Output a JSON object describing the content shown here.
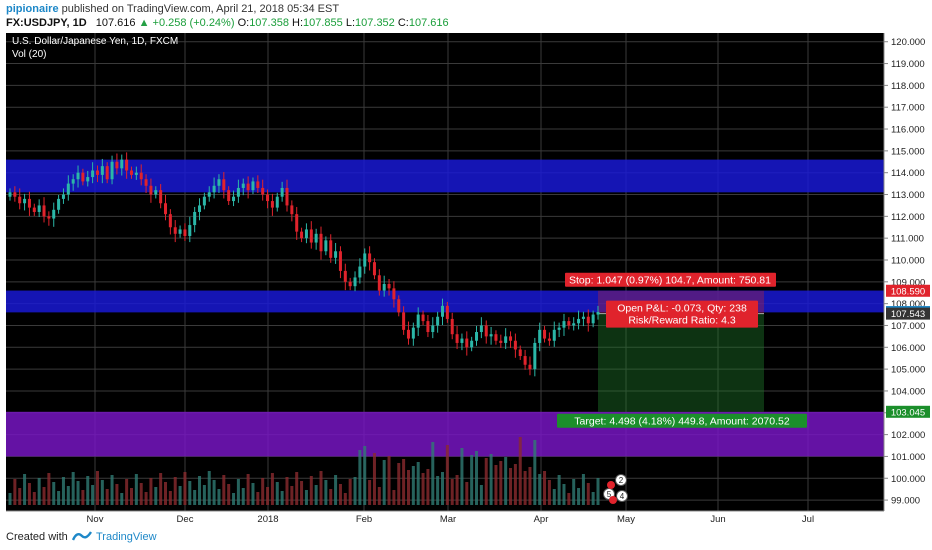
{
  "header": {
    "author": "pipionaire",
    "published": " published on TradingView.com, April 21, 2018 05:34 EST",
    "symbol": "FX:USDJPY, 1D",
    "last": "107.616",
    "change_arrow": "▲",
    "change": "+0.258 (+0.24%)",
    "o_label": "O:",
    "o": "107.358",
    "h_label": "H:",
    "h": "107.855",
    "l_label": "L:",
    "l": "107.352",
    "c_label": "C:",
    "c": "107.616"
  },
  "chart_data": {
    "type": "candlestick",
    "title": "U.S. Dollar/Japanese Yen, 1D, FXCM",
    "volume_label": "Vol (20)",
    "ylim": [
      98.5,
      120.4
    ],
    "y_ticks": [
      "120.000",
      "119.000",
      "118.000",
      "117.000",
      "116.000",
      "115.000",
      "114.000",
      "113.000",
      "112.000",
      "111.000",
      "110.000",
      "109.000",
      "108.000",
      "107.000",
      "106.000",
      "105.000",
      "104.000",
      "103.000",
      "102.000",
      "101.000",
      "100.000",
      "99.000"
    ],
    "x_ticks": [
      "Nov",
      "Dec",
      "2018",
      "Feb",
      "Mar",
      "Apr",
      "May",
      "Jun",
      "Jul"
    ],
    "series_close": [
      113.1,
      112.9,
      112.6,
      112.8,
      112.4,
      112.2,
      112.5,
      112.0,
      111.9,
      112.3,
      112.8,
      113.0,
      113.5,
      113.7,
      114.0,
      113.6,
      113.8,
      114.1,
      113.9,
      114.3,
      113.7,
      114.5,
      114.2,
      114.6,
      114.1,
      113.9,
      114.0,
      113.7,
      113.4,
      113.0,
      113.2,
      112.6,
      112.1,
      111.5,
      111.2,
      111.4,
      111.1,
      111.6,
      112.2,
      112.5,
      112.9,
      113.1,
      113.4,
      113.7,
      113.2,
      112.7,
      112.9,
      113.3,
      113.5,
      113.2,
      113.6,
      113.3,
      113.0,
      112.7,
      112.4,
      112.9,
      113.3,
      112.5,
      112.1,
      111.3,
      111.0,
      111.4,
      110.8,
      111.2,
      110.4,
      110.9,
      110.1,
      110.4,
      109.5,
      109.0,
      108.8,
      109.2,
      109.7,
      110.3,
      109.9,
      109.3,
      108.6,
      108.9,
      108.7,
      108.2,
      107.6,
      106.8,
      106.4,
      106.9,
      107.5,
      107.2,
      106.7,
      107.0,
      107.4,
      107.9,
      107.3,
      106.6,
      106.2,
      106.4,
      106.0,
      106.3,
      106.7,
      107.0,
      106.5,
      106.6,
      106.3,
      106.2,
      106.5,
      106.3,
      105.9,
      105.6,
      105.2,
      105.0,
      106.2,
      106.8,
      106.4,
      106.3,
      106.8,
      106.9,
      107.2,
      107.0,
      107.1,
      107.3,
      107.4,
      107.1,
      107.5,
      107.616
    ],
    "volume_note": "relative volume bars with Vol (20) average line",
    "zones": [
      {
        "label": "resistance",
        "from": 113.1,
        "to": 114.6,
        "color": "#1a1adc"
      },
      {
        "label": "entry",
        "from": 107.6,
        "to": 108.6,
        "color": "#1a1adc"
      },
      {
        "label": "target",
        "from": 101.0,
        "to": 103.045,
        "color": "#7a16c8"
      }
    ],
    "position": {
      "stop_text": "Stop: 1.047 (0.97%) 104.7, Amount: 750.81",
      "pnl_text": "Open P&L: -0.073, Qty: 238",
      "rr_text": "Risk/Reward Ratio: 4.3",
      "target_text": "Target: 4.498 (4.18%) 449.8, Amount: 2070.52",
      "stop_price": 108.59,
      "entry_price": 107.543,
      "target_price": 103.045
    },
    "price_labels": [
      {
        "text": "108.590",
        "value": 108.59,
        "bg": "#e0232c"
      },
      {
        "text": "107.616",
        "value": 107.616,
        "bg": "#1e88c8"
      },
      {
        "text": "107.543",
        "value": 107.543,
        "bg": "#333333"
      },
      {
        "text": "103.045",
        "value": 103.045,
        "bg": "#1b8f2b"
      }
    ],
    "event_badges": [
      "2",
      "5",
      "4"
    ],
    "colors": {
      "up": "#2bb7a8",
      "down": "#e0232c",
      "background": "#000000",
      "grid": "#3a3a3a"
    }
  },
  "footer": {
    "created": "Created with",
    "brand": "TradingView"
  }
}
